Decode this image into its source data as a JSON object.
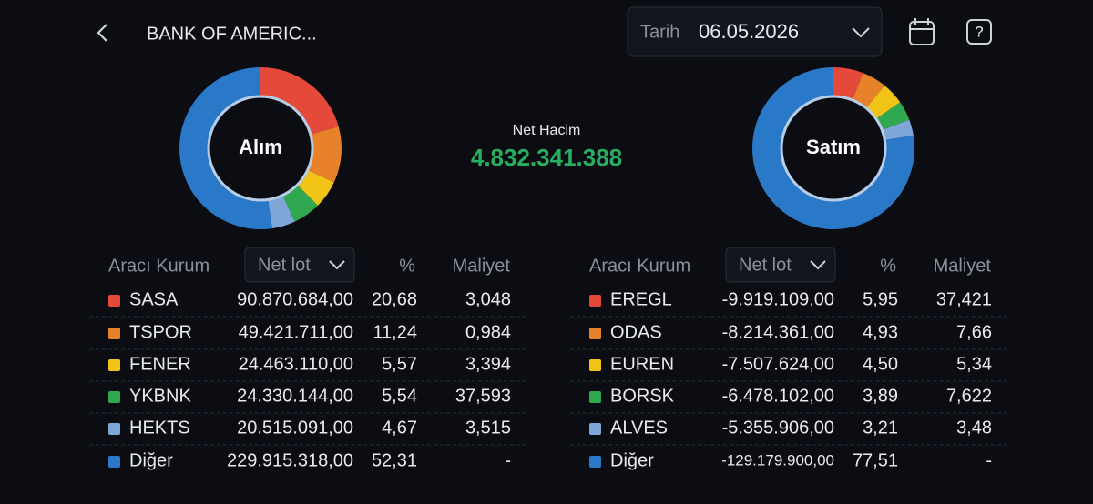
{
  "header": {
    "title": "BANK OF AMERIC...",
    "date_label": "Tarih",
    "date": "06.05.2026"
  },
  "summary": {
    "label": "Net Hacim",
    "value": "4.832.341.388"
  },
  "panels": [
    {
      "center_label": "Alım",
      "columns": {
        "broker": "Aracı Kurum",
        "sort": "Net lot",
        "pct": "%",
        "cost": "Maliyet"
      },
      "rows": [
        {
          "name": "SASA",
          "color": "#e5493a",
          "lot": "90.870.684,00",
          "pct": {
            "value": 20.68,
            "label": "20,68"
          },
          "cost": "3,048"
        },
        {
          "name": "TSPOR",
          "color": "#e8822a",
          "lot": "49.421.711,00",
          "pct": {
            "value": 11.24,
            "label": "11,24"
          },
          "cost": "0,984"
        },
        {
          "name": "FENER",
          "color": "#f2c417",
          "lot": "24.463.110,00",
          "pct": {
            "value": 5.57,
            "label": "5,57"
          },
          "cost": "3,394"
        },
        {
          "name": "YKBNK",
          "color": "#2fa84f",
          "lot": "24.330.144,00",
          "pct": {
            "value": 5.54,
            "label": "5,54"
          },
          "cost": "37,593"
        },
        {
          "name": "HEKTS",
          "color": "#7ea6d6",
          "lot": "20.515.091,00",
          "pct": {
            "value": 4.67,
            "label": "4,67"
          },
          "cost": "3,515"
        },
        {
          "name": "Diğer",
          "color": "#2a78c8",
          "lot": "229.915.318,00",
          "pct": {
            "value": 52.31,
            "label": "52,31"
          },
          "cost": "-"
        }
      ]
    },
    {
      "center_label": "Satım",
      "columns": {
        "broker": "Aracı Kurum",
        "sort": "Net lot",
        "pct": "%",
        "cost": "Maliyet"
      },
      "rows": [
        {
          "name": "EREGL",
          "color": "#e5493a",
          "lot": "-9.919.109,00",
          "pct": {
            "value": 5.95,
            "label": "5,95"
          },
          "cost": "37,421"
        },
        {
          "name": "ODAS",
          "color": "#e8822a",
          "lot": "-8.214.361,00",
          "pct": {
            "value": 4.93,
            "label": "4,93"
          },
          "cost": "7,66"
        },
        {
          "name": "EUREN",
          "color": "#f2c417",
          "lot": "-7.507.624,00",
          "pct": {
            "value": 4.5,
            "label": "4,50"
          },
          "cost": "5,34"
        },
        {
          "name": "BORSK",
          "color": "#2fa84f",
          "lot": "-6.478.102,00",
          "pct": {
            "value": 3.89,
            "label": "3,89"
          },
          "cost": "7,622"
        },
        {
          "name": "ALVES",
          "color": "#7ea6d6",
          "lot": "-5.355.906,00",
          "pct": {
            "value": 3.21,
            "label": "3,21"
          },
          "cost": "3,48"
        },
        {
          "name": "Diğer",
          "color": "#2a78c8",
          "lot": "-129.179.900,00",
          "pct": {
            "value": 77.51,
            "label": "77,51"
          },
          "cost": "-"
        }
      ]
    }
  ]
}
